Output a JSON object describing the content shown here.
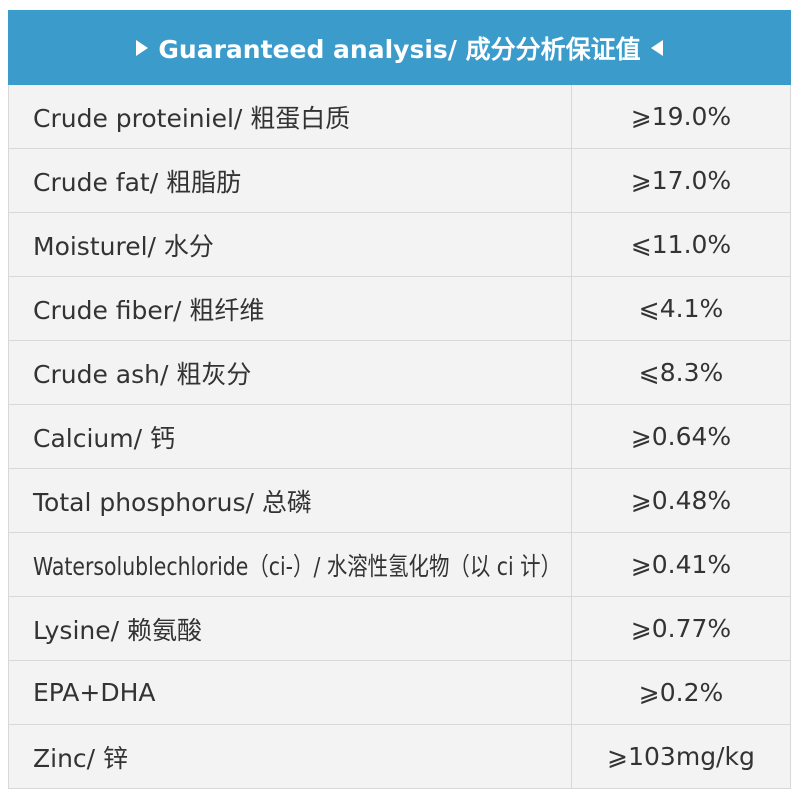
{
  "header": {
    "title": "Guaranteed analysis/ 成分分析保证值"
  },
  "table": {
    "rows": [
      [
        "Crude proteiniel/ 粗蛋白质",
        "⩾19.0%"
      ],
      [
        "Crude fat/ 粗脂肪",
        "⩾17.0%"
      ],
      [
        "Moisturel/ 水分",
        "⩽11.0%"
      ],
      [
        "Crude fiber/ 粗纤维",
        "⩽4.1%"
      ],
      [
        "Crude ash/ 粗灰分",
        "⩽8.3%"
      ],
      [
        "Calcium/ 钙",
        "⩾0.64%"
      ],
      [
        "Total phosphorus/ 总磷",
        "⩾0.48%"
      ],
      [
        "Watersolublechloride（ci-）/ 水溶性氢化物（以 ci 计）",
        "⩾0.41%"
      ],
      [
        "Lysine/ 赖氨酸",
        "⩾0.77%"
      ],
      [
        "EPA+DHA",
        "⩾0.2%"
      ],
      [
        "Zinc/ 锌",
        "⩾103mg/kg"
      ]
    ]
  }
}
